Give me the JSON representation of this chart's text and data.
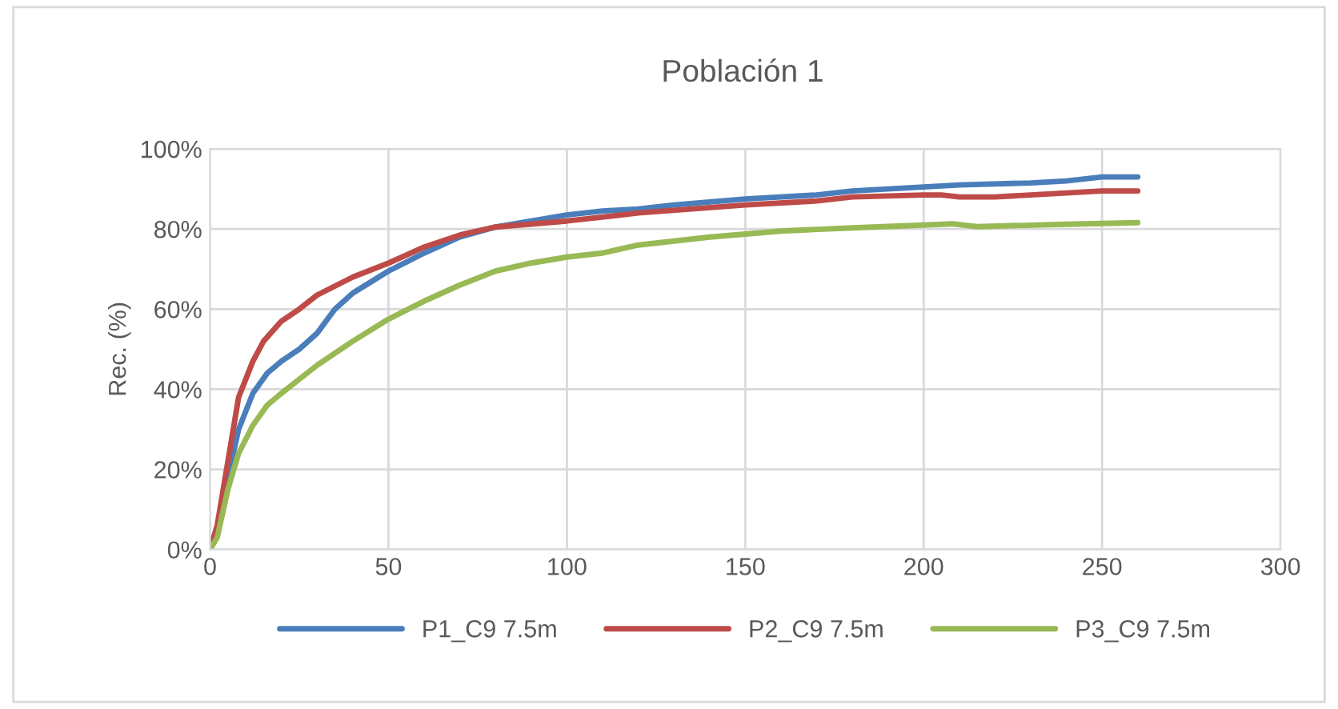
{
  "chart_data": {
    "type": "line",
    "title": "Población 1",
    "ylabel": "Rec. (%)",
    "xlim": [
      0,
      300
    ],
    "xticks": [
      0,
      50,
      100,
      150,
      200,
      250,
      300
    ],
    "ylim": [
      0,
      100
    ],
    "yticks": [
      {
        "value": 0,
        "label": "0%"
      },
      {
        "value": 20,
        "label": "20%"
      },
      {
        "value": 40,
        "label": "40%"
      },
      {
        "value": 60,
        "label": "60%"
      },
      {
        "value": 80,
        "label": "80%"
      },
      {
        "value": 100,
        "label": "100%"
      }
    ],
    "grid": true,
    "legend": "bottom",
    "marker": "none",
    "line_style": "solid",
    "series": [
      {
        "name": "P1_C9 7.5m",
        "color": "#4a7ebb",
        "x": [
          0,
          2,
          5,
          8,
          12,
          16,
          20,
          25,
          30,
          35,
          40,
          50,
          60,
          70,
          80,
          90,
          100,
          110,
          120,
          130,
          150,
          170,
          180,
          200,
          210,
          230,
          240,
          250,
          260
        ],
        "values": [
          0,
          5,
          18,
          30,
          39,
          44,
          47,
          50,
          54,
          60,
          64,
          69.5,
          74,
          78,
          80.5,
          82,
          83.5,
          84.5,
          85,
          86,
          87.5,
          88.5,
          89.5,
          90.5,
          91,
          91.5,
          92,
          93,
          93
        ]
      },
      {
        "name": "P2_C9 7.5m",
        "color": "#be4b48",
        "x": [
          0,
          2,
          5,
          8,
          12,
          15,
          20,
          25,
          30,
          40,
          50,
          60,
          70,
          80,
          100,
          120,
          150,
          170,
          180,
          200,
          205,
          210,
          220,
          240,
          250,
          260
        ],
        "values": [
          0,
          6,
          22,
          38,
          47,
          52,
          57,
          60,
          63.5,
          68,
          71.5,
          75.5,
          78.5,
          80.5,
          82,
          84,
          86,
          87,
          88,
          88.5,
          88.5,
          88,
          88,
          89,
          89.5,
          89.5
        ]
      },
      {
        "name": "P3_C9 7.5m",
        "color": "#98b954",
        "x": [
          0,
          2,
          5,
          8,
          12,
          16,
          20,
          30,
          40,
          50,
          60,
          70,
          80,
          90,
          100,
          110,
          120,
          140,
          160,
          180,
          200,
          208,
          215,
          240,
          260
        ],
        "values": [
          0,
          3,
          15,
          24,
          31,
          36,
          39,
          46,
          52,
          57.5,
          62,
          66,
          69.5,
          71.5,
          73,
          74,
          76,
          78,
          79.5,
          80.3,
          81,
          81.3,
          80.6,
          81.2,
          81.6
        ]
      }
    ]
  }
}
